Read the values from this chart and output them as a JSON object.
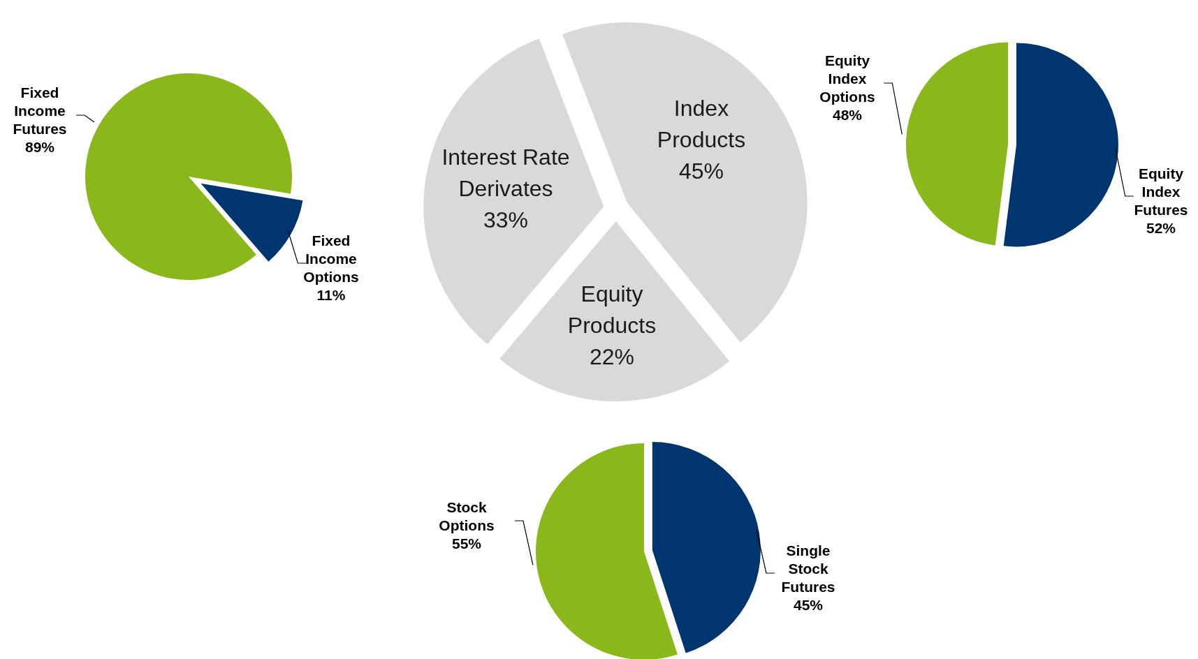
{
  "chart_data": [
    {
      "type": "pie",
      "categories": [
        "Fixed Income Options",
        "Fixed Income Futures"
      ],
      "values": [
        11,
        89
      ],
      "colors": [
        "#003670",
        "#8ab81a"
      ],
      "value_labels": [
        "11%",
        "89%"
      ]
    },
    {
      "type": "pie",
      "categories": [
        "Index Products",
        "Equity Products",
        "Interest Rate Derivates"
      ],
      "values": [
        45,
        22,
        33
      ],
      "colors": [
        "#d9d9d9",
        "#d9d9d9",
        "#d9d9d9"
      ],
      "value_labels": [
        "45%",
        "22%",
        "33%"
      ]
    },
    {
      "type": "pie",
      "categories": [
        "Equity Index Futures",
        "Equity Index Options"
      ],
      "values": [
        52,
        48
      ],
      "colors": [
        "#003670",
        "#8ab81a"
      ],
      "value_labels": [
        "52%",
        "48%"
      ]
    },
    {
      "type": "pie",
      "categories": [
        "Single Stock Futures",
        "Stock Options"
      ],
      "values": [
        45,
        55
      ],
      "colors": [
        "#003670",
        "#8ab81a"
      ],
      "value_labels": [
        "45%",
        "55%"
      ]
    }
  ]
}
